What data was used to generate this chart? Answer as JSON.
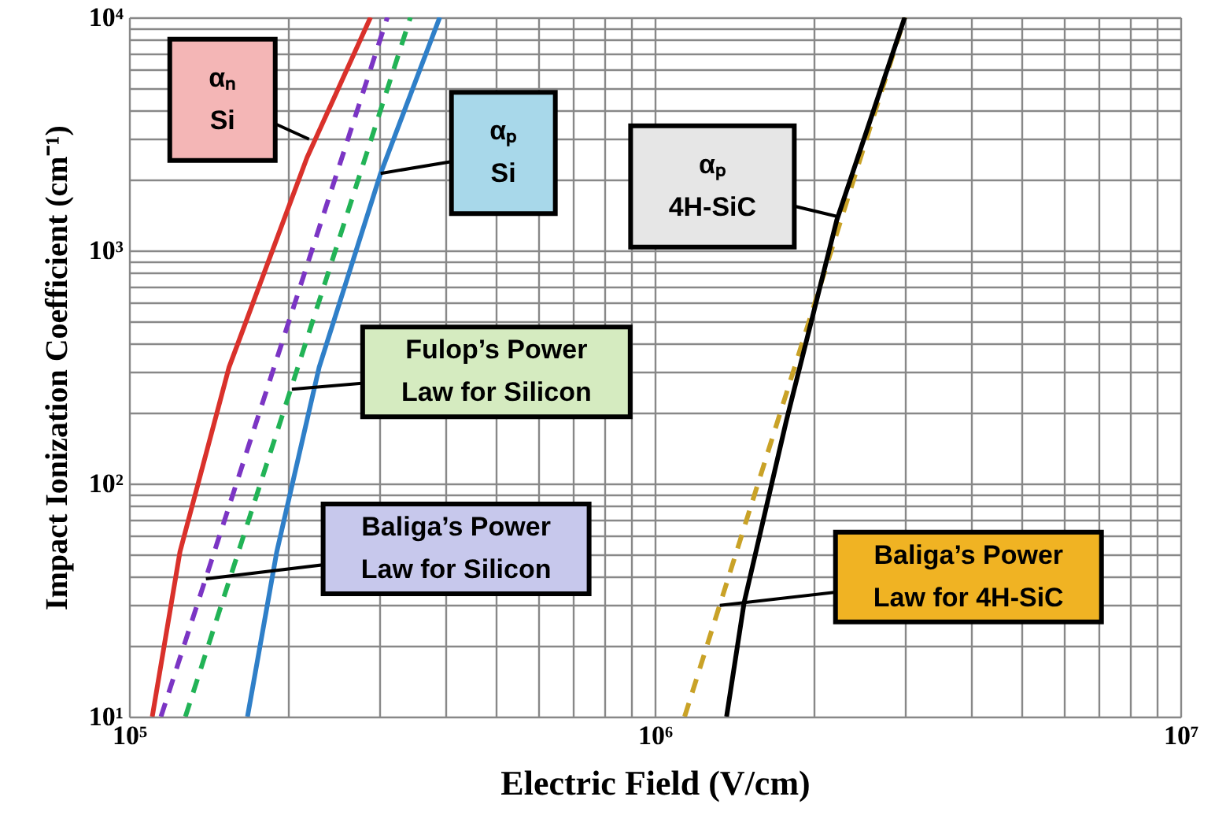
{
  "chart_data": {
    "type": "line",
    "log": "xy",
    "xlabel": "Electric Field   (V/cm)",
    "ylabel": "Impact Ionization Coefficient (cm⁻¹)",
    "xlim": [
      100000,
      10000000
    ],
    "ylim": [
      10,
      10000
    ],
    "xticks": [
      {
        "value": 100000,
        "label": "10⁵"
      },
      {
        "value": 200000,
        "label": null
      },
      {
        "value": 300000,
        "label": null
      },
      {
        "value": 400000,
        "label": null
      },
      {
        "value": 500000,
        "label": null
      },
      {
        "value": 600000,
        "label": null
      },
      {
        "value": 700000,
        "label": null
      },
      {
        "value": 800000,
        "label": null
      },
      {
        "value": 900000,
        "label": null
      },
      {
        "value": 1000000,
        "label": "10⁶"
      },
      {
        "value": 2000000,
        "label": null
      },
      {
        "value": 3000000,
        "label": null
      },
      {
        "value": 4000000,
        "label": null
      },
      {
        "value": 5000000,
        "label": null
      },
      {
        "value": 6000000,
        "label": null
      },
      {
        "value": 7000000,
        "label": null
      },
      {
        "value": 8000000,
        "label": null
      },
      {
        "value": 9000000,
        "label": null
      },
      {
        "value": 10000000,
        "label": "10⁷"
      }
    ],
    "yticks": [
      {
        "value": 10,
        "label": "10¹"
      },
      {
        "value": 20,
        "label": null
      },
      {
        "value": 30,
        "label": null
      },
      {
        "value": 40,
        "label": null
      },
      {
        "value": 50,
        "label": null
      },
      {
        "value": 60,
        "label": null
      },
      {
        "value": 70,
        "label": null
      },
      {
        "value": 80,
        "label": null
      },
      {
        "value": 90,
        "label": null
      },
      {
        "value": 100,
        "label": "10²"
      },
      {
        "value": 200,
        "label": null
      },
      {
        "value": 300,
        "label": null
      },
      {
        "value": 400,
        "label": null
      },
      {
        "value": 500,
        "label": null
      },
      {
        "value": 600,
        "label": null
      },
      {
        "value": 700,
        "label": null
      },
      {
        "value": 800,
        "label": null
      },
      {
        "value": 900,
        "label": null
      },
      {
        "value": 1000,
        "label": "10³"
      },
      {
        "value": 2000,
        "label": null
      },
      {
        "value": 3000,
        "label": null
      },
      {
        "value": 4000,
        "label": null
      },
      {
        "value": 5000,
        "label": null
      },
      {
        "value": 6000,
        "label": null
      },
      {
        "value": 7000,
        "label": null
      },
      {
        "value": 8000,
        "label": null
      },
      {
        "value": 9000,
        "label": null
      },
      {
        "value": 10000,
        "label": "10⁴"
      }
    ],
    "grid": true,
    "marker": "none",
    "series": [
      {
        "color": "#d9312b",
        "line_style": "solid",
        "x": [
          110700,
          125000,
          155000,
          218000,
          288000
        ],
        "values": [
          10,
          51,
          316,
          2500,
          10000
        ]
      },
      {
        "color": "#7b35c4",
        "line_style": "dashed",
        "x": [
          115000,
          310000
        ],
        "values": [
          10,
          10000
        ]
      },
      {
        "color": "#22b356",
        "line_style": "dashed",
        "x": [
          128000,
          343000
        ],
        "values": [
          10,
          10000
        ]
      },
      {
        "color": "#2f7fc8",
        "line_style": "solid",
        "x": [
          168000,
          191000,
          230000,
          301000,
          390000
        ],
        "values": [
          10,
          51,
          316,
          2140,
          10000
        ]
      },
      {
        "color": "#c9a227",
        "line_style": "dashed",
        "x": [
          1140000,
          2990000
        ],
        "values": [
          10,
          10000
        ]
      },
      {
        "color": "#000000",
        "line_style": "solid",
        "x": [
          1370000,
          1480000,
          1780000,
          2220000,
          2990000
        ],
        "values": [
          10,
          31,
          186,
          1350,
          10000
        ]
      }
    ],
    "annotations": [
      {
        "text": "αₙ\nSi",
        "x": 220000,
        "y": 3000
      },
      {
        "text": "αₚ\nSi",
        "x": 301000,
        "y": 2140
      },
      {
        "text": "Fulop’s Power\nLaw for Silicon",
        "x": 204000,
        "y": 254
      },
      {
        "text": "Baliga’s Power\nLaw for Silicon",
        "x": 140000,
        "y": 39
      },
      {
        "text": "αₚ\n4H-SiC",
        "x": 2220000,
        "y": 1400
      },
      {
        "text": "Baliga’s Power\nLaw for 4H-SiC",
        "x": 1330000,
        "y": 30
      }
    ]
  }
}
